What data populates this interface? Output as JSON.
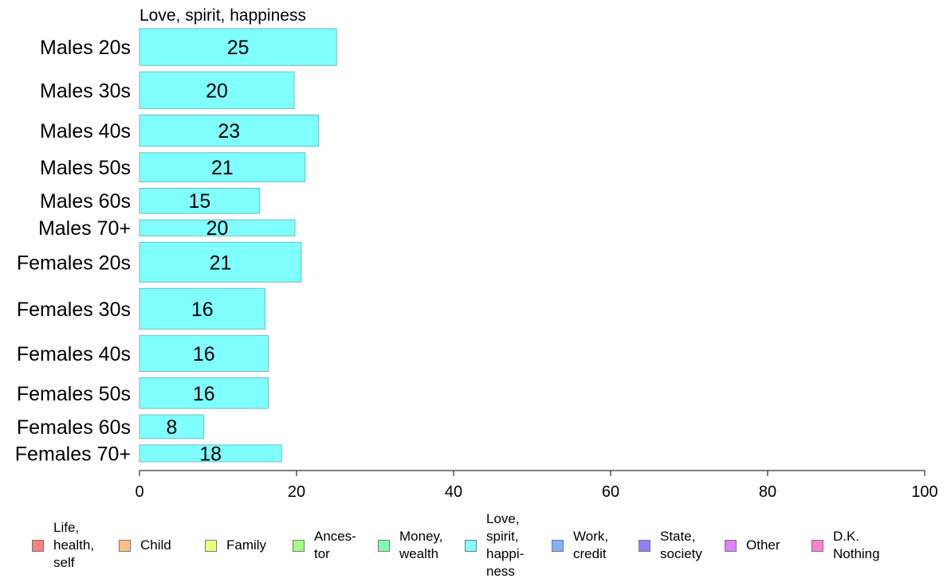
{
  "chart_data": {
    "type": "bar",
    "orientation": "horizontal",
    "title": "Love, spirit, happiness",
    "categories": [
      "Males 20s",
      "Males 30s",
      "Males 40s",
      "Males 50s",
      "Males 60s",
      "Males 70+",
      "Females 20s",
      "Females 30s",
      "Females 40s",
      "Females 50s",
      "Females 60s",
      "Females 70+"
    ],
    "values": [
      25,
      20,
      23,
      21,
      15,
      20,
      21,
      16,
      16,
      16,
      8,
      18
    ],
    "plotted_values": [
      25.1,
      19.7,
      22.8,
      21.1,
      15.3,
      19.8,
      20.6,
      16.0,
      16.4,
      16.4,
      8.2,
      18.1
    ],
    "relative_bar_widths": [
      48,
      48,
      41,
      38,
      33,
      21,
      52,
      53,
      47,
      40,
      31,
      22
    ],
    "bar_color": "#80ffff",
    "bar_border": "#6fbcbc",
    "xlim": [
      0,
      100
    ],
    "xticks": [
      0,
      20,
      40,
      60,
      80,
      100
    ],
    "xlabel": "",
    "ylabel": "",
    "grid": false,
    "legend_position": "bottom",
    "legend": [
      {
        "label": "Life,\nhealth,\nself",
        "color": "#ff8080"
      },
      {
        "label": "Child",
        "color": "#ffc080"
      },
      {
        "label": "Family",
        "color": "#eeff80"
      },
      {
        "label": "Ances-\ntor",
        "color": "#a0ff80"
      },
      {
        "label": "Money,\nwealth",
        "color": "#80ffb0"
      },
      {
        "label": "Love,\nspirit,\nhappi-\nness",
        "color": "#80ffff"
      },
      {
        "label": "Work,\ncredit",
        "color": "#80b0ff"
      },
      {
        "label": "State,\nsociety",
        "color": "#9080ff"
      },
      {
        "label": "Other",
        "color": "#e080ff"
      },
      {
        "label": "D.K.\nNothing",
        "color": "#ff80d0"
      }
    ]
  }
}
